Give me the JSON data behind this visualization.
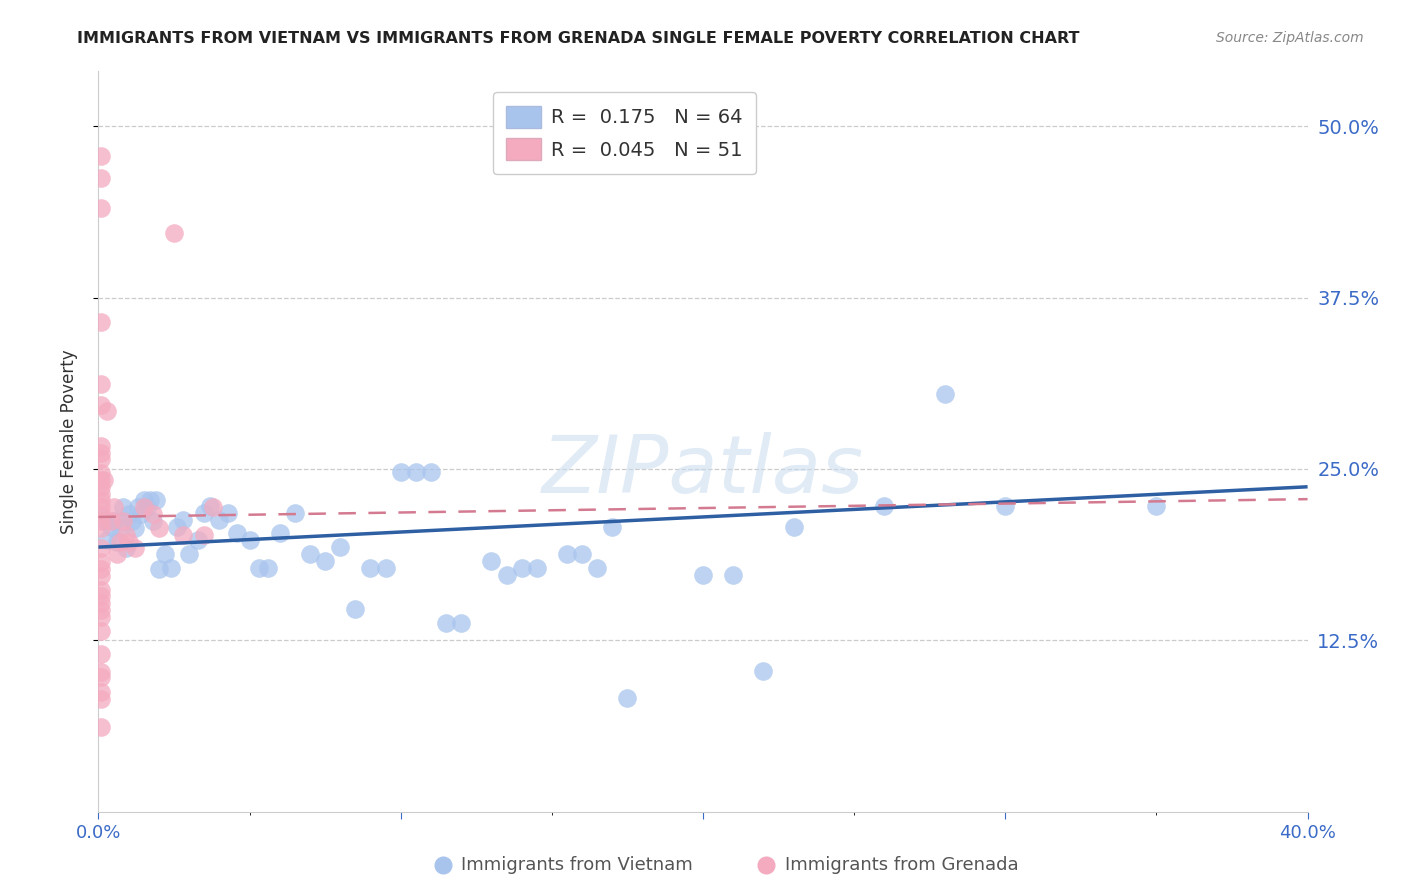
{
  "title": "IMMIGRANTS FROM VIETNAM VS IMMIGRANTS FROM GRENADA SINGLE FEMALE POVERTY CORRELATION CHART",
  "source": "Source: ZipAtlas.com",
  "ylabel": "Single Female Poverty",
  "ytick_labels": [
    "50.0%",
    "37.5%",
    "25.0%",
    "12.5%"
  ],
  "ytick_values": [
    0.5,
    0.375,
    0.25,
    0.125
  ],
  "xlim": [
    0.0,
    0.4
  ],
  "ylim": [
    0.0,
    0.54
  ],
  "vietnam_color": "#A8C4ED",
  "grenada_color": "#F4AABF",
  "vietnam_line_color": "#2E5FA3",
  "grenada_line_color": "#D47A90",
  "R_vietnam": 0.175,
  "N_vietnam": 64,
  "R_grenada": 0.045,
  "N_grenada": 51,
  "watermark": "ZIPatlas",
  "vietnam_line": [
    0.0,
    0.193,
    0.4,
    0.237
  ],
  "grenada_line": [
    0.0,
    0.215,
    0.4,
    0.228
  ],
  "vietnam_points": [
    [
      0.001,
      0.215
    ],
    [
      0.002,
      0.212
    ],
    [
      0.003,
      0.198
    ],
    [
      0.004,
      0.208
    ],
    [
      0.005,
      0.212
    ],
    [
      0.006,
      0.197
    ],
    [
      0.007,
      0.207
    ],
    [
      0.008,
      0.222
    ],
    [
      0.009,
      0.192
    ],
    [
      0.01,
      0.217
    ],
    [
      0.011,
      0.212
    ],
    [
      0.012,
      0.207
    ],
    [
      0.013,
      0.222
    ],
    [
      0.014,
      0.217
    ],
    [
      0.015,
      0.227
    ],
    [
      0.016,
      0.222
    ],
    [
      0.017,
      0.227
    ],
    [
      0.018,
      0.212
    ],
    [
      0.019,
      0.227
    ],
    [
      0.02,
      0.177
    ],
    [
      0.022,
      0.188
    ],
    [
      0.024,
      0.178
    ],
    [
      0.026,
      0.208
    ],
    [
      0.028,
      0.213
    ],
    [
      0.03,
      0.188
    ],
    [
      0.033,
      0.198
    ],
    [
      0.035,
      0.218
    ],
    [
      0.037,
      0.223
    ],
    [
      0.04,
      0.213
    ],
    [
      0.043,
      0.218
    ],
    [
      0.046,
      0.203
    ],
    [
      0.05,
      0.198
    ],
    [
      0.053,
      0.178
    ],
    [
      0.056,
      0.178
    ],
    [
      0.06,
      0.203
    ],
    [
      0.065,
      0.218
    ],
    [
      0.07,
      0.188
    ],
    [
      0.075,
      0.183
    ],
    [
      0.08,
      0.193
    ],
    [
      0.085,
      0.148
    ],
    [
      0.09,
      0.178
    ],
    [
      0.095,
      0.178
    ],
    [
      0.1,
      0.248
    ],
    [
      0.105,
      0.248
    ],
    [
      0.11,
      0.248
    ],
    [
      0.115,
      0.138
    ],
    [
      0.12,
      0.138
    ],
    [
      0.13,
      0.183
    ],
    [
      0.135,
      0.173
    ],
    [
      0.14,
      0.178
    ],
    [
      0.145,
      0.178
    ],
    [
      0.155,
      0.188
    ],
    [
      0.16,
      0.188
    ],
    [
      0.165,
      0.178
    ],
    [
      0.17,
      0.208
    ],
    [
      0.175,
      0.083
    ],
    [
      0.2,
      0.173
    ],
    [
      0.21,
      0.173
    ],
    [
      0.22,
      0.103
    ],
    [
      0.23,
      0.208
    ],
    [
      0.26,
      0.223
    ],
    [
      0.28,
      0.305
    ],
    [
      0.3,
      0.223
    ],
    [
      0.35,
      0.223
    ]
  ],
  "grenada_points": [
    [
      0.001,
      0.478
    ],
    [
      0.001,
      0.462
    ],
    [
      0.001,
      0.44
    ],
    [
      0.001,
      0.357
    ],
    [
      0.001,
      0.312
    ],
    [
      0.001,
      0.297
    ],
    [
      0.001,
      0.267
    ],
    [
      0.001,
      0.262
    ],
    [
      0.001,
      0.257
    ],
    [
      0.001,
      0.247
    ],
    [
      0.001,
      0.242
    ],
    [
      0.001,
      0.237
    ],
    [
      0.001,
      0.232
    ],
    [
      0.001,
      0.227
    ],
    [
      0.001,
      0.222
    ],
    [
      0.001,
      0.217
    ],
    [
      0.001,
      0.212
    ],
    [
      0.001,
      0.207
    ],
    [
      0.001,
      0.192
    ],
    [
      0.001,
      0.182
    ],
    [
      0.001,
      0.177
    ],
    [
      0.001,
      0.172
    ],
    [
      0.001,
      0.162
    ],
    [
      0.001,
      0.157
    ],
    [
      0.001,
      0.152
    ],
    [
      0.001,
      0.147
    ],
    [
      0.001,
      0.142
    ],
    [
      0.001,
      0.102
    ],
    [
      0.001,
      0.087
    ],
    [
      0.001,
      0.082
    ],
    [
      0.002,
      0.242
    ],
    [
      0.003,
      0.292
    ],
    [
      0.004,
      0.212
    ],
    [
      0.005,
      0.222
    ],
    [
      0.006,
      0.188
    ],
    [
      0.007,
      0.197
    ],
    [
      0.008,
      0.212
    ],
    [
      0.009,
      0.202
    ],
    [
      0.01,
      0.197
    ],
    [
      0.012,
      0.192
    ],
    [
      0.015,
      0.222
    ],
    [
      0.018,
      0.217
    ],
    [
      0.02,
      0.207
    ],
    [
      0.025,
      0.422
    ],
    [
      0.028,
      0.202
    ],
    [
      0.035,
      0.202
    ],
    [
      0.038,
      0.222
    ],
    [
      0.001,
      0.132
    ],
    [
      0.001,
      0.115
    ],
    [
      0.001,
      0.098
    ],
    [
      0.001,
      0.062
    ]
  ]
}
